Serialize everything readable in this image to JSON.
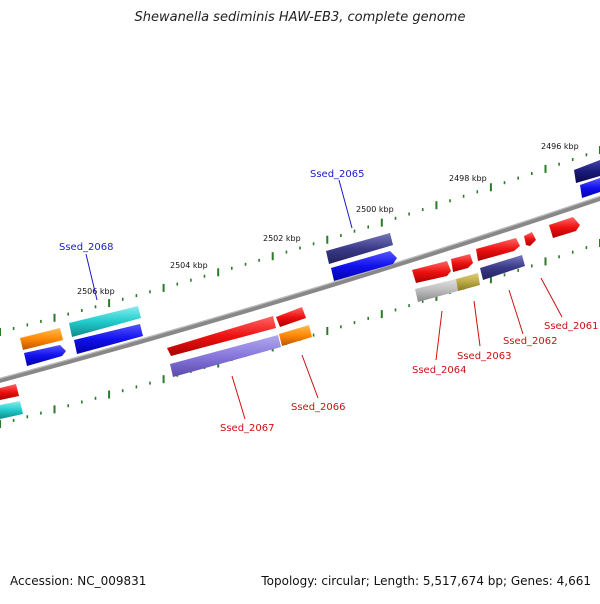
{
  "title": "Shewanella sediminis HAW-EB3, complete genome",
  "footer": {
    "accession": "Accession: NC_009831",
    "summary": "Topology: circular; Length: 5,517,674 bp; Genes: 4,661"
  },
  "scale_labels": [
    "2496 kbp",
    "2498 kbp",
    "2500 kbp",
    "2502 kbp",
    "2504 kbp",
    "2506 kbp"
  ],
  "gene_labels": [
    {
      "name": "Ssed_2065",
      "color": "#1a1acc"
    },
    {
      "name": "Ssed_2068",
      "color": "#1a1acc"
    },
    {
      "name": "Ssed_2061",
      "color": "#cc1111"
    },
    {
      "name": "Ssed_2062",
      "color": "#cc1111"
    },
    {
      "name": "Ssed_2063",
      "color": "#cc1111"
    },
    {
      "name": "Ssed_2064",
      "color": "#cc1111"
    },
    {
      "name": "Ssed_2066",
      "color": "#cc1111"
    },
    {
      "name": "Ssed_2067",
      "color": "#cc1111"
    }
  ],
  "colors": {
    "backbone": "#888888",
    "tick": "#2a7a2a",
    "red": "#ee1111",
    "blue": "#1111ee",
    "navy": "#1a1a7a",
    "slate": "#3a3a8a",
    "lavender": "#8877dd",
    "orange": "#ff8800",
    "cyan": "#22cccc",
    "gray": "#bbbbbb",
    "olive": "#bbaa44"
  }
}
